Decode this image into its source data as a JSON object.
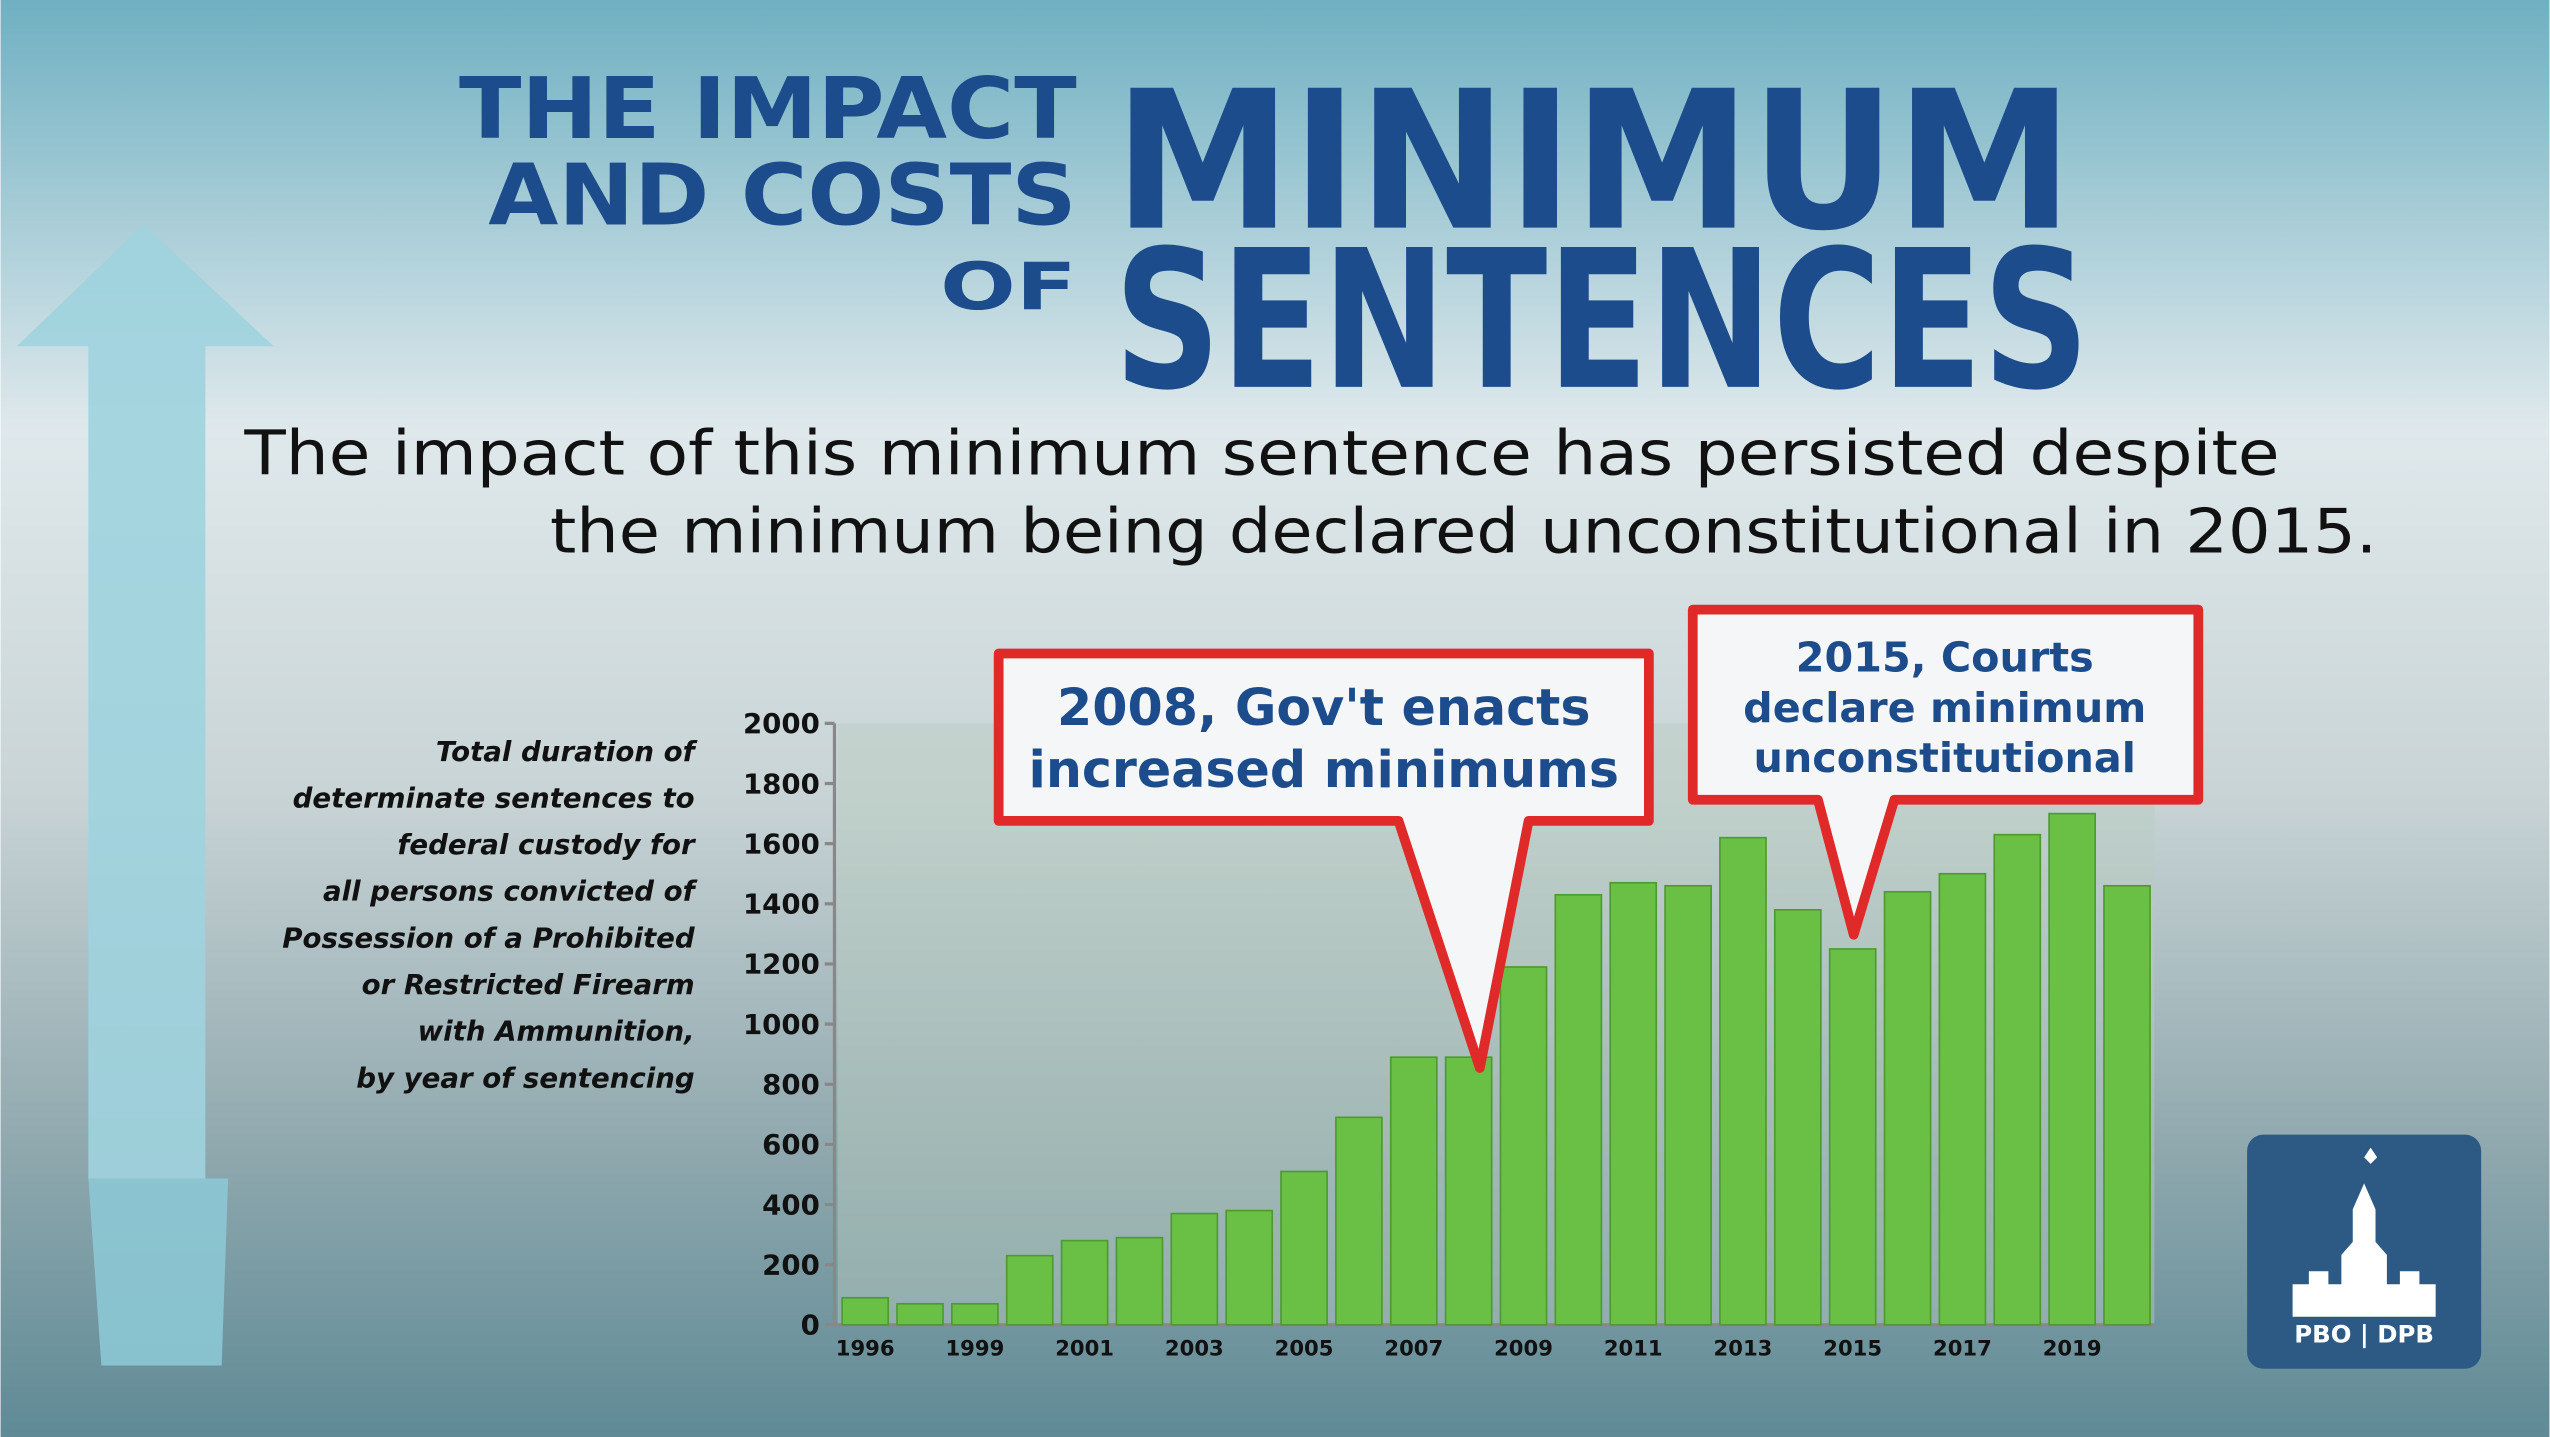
{
  "title": {
    "left_lines": [
      "THE IMPACT",
      "AND COSTS",
      "OF"
    ],
    "right_lines": [
      "MINIMUM",
      "SENTENCES"
    ]
  },
  "subtitle_lines": [
    "The impact of this minimum sentence has persisted despite",
    "the minimum being declared unconstitutional in 2015."
  ],
  "logo": "PBO | DPB",
  "chart_data": {
    "type": "bar",
    "y_label_lines": [
      "Total duration of",
      "determinate sentences to",
      "federal custody for",
      "all persons convicted of",
      "Possession of a Prohibited",
      "or Restricted Firearm",
      "with Ammunition,",
      "by year of sentencing"
    ],
    "categories": [
      "1996",
      null,
      "1999",
      null,
      "2001",
      null,
      "2003",
      null,
      "2005",
      null,
      "2007",
      null,
      "2009",
      null,
      "2011",
      null,
      "2013",
      null,
      "2015",
      null,
      "2017",
      null,
      "2019",
      null
    ],
    "values": [
      90,
      70,
      70,
      230,
      280,
      290,
      370,
      380,
      510,
      690,
      890,
      890,
      1190,
      1430,
      1470,
      1460,
      1620,
      1380,
      1250,
      1440,
      1500,
      1630,
      1700,
      1460
    ],
    "color": "#6abf45",
    "ylim": [
      0,
      2000
    ],
    "yticks": [
      0,
      200,
      400,
      600,
      800,
      1000,
      1200,
      1400,
      1600,
      1800,
      2000
    ],
    "annotations": [
      {
        "lines": [
          "2008, Gov't enacts",
          "increased minimums"
        ]
      },
      {
        "lines": [
          "2015, Courts",
          "declare minimum",
          "unconstitutional"
        ]
      }
    ]
  }
}
